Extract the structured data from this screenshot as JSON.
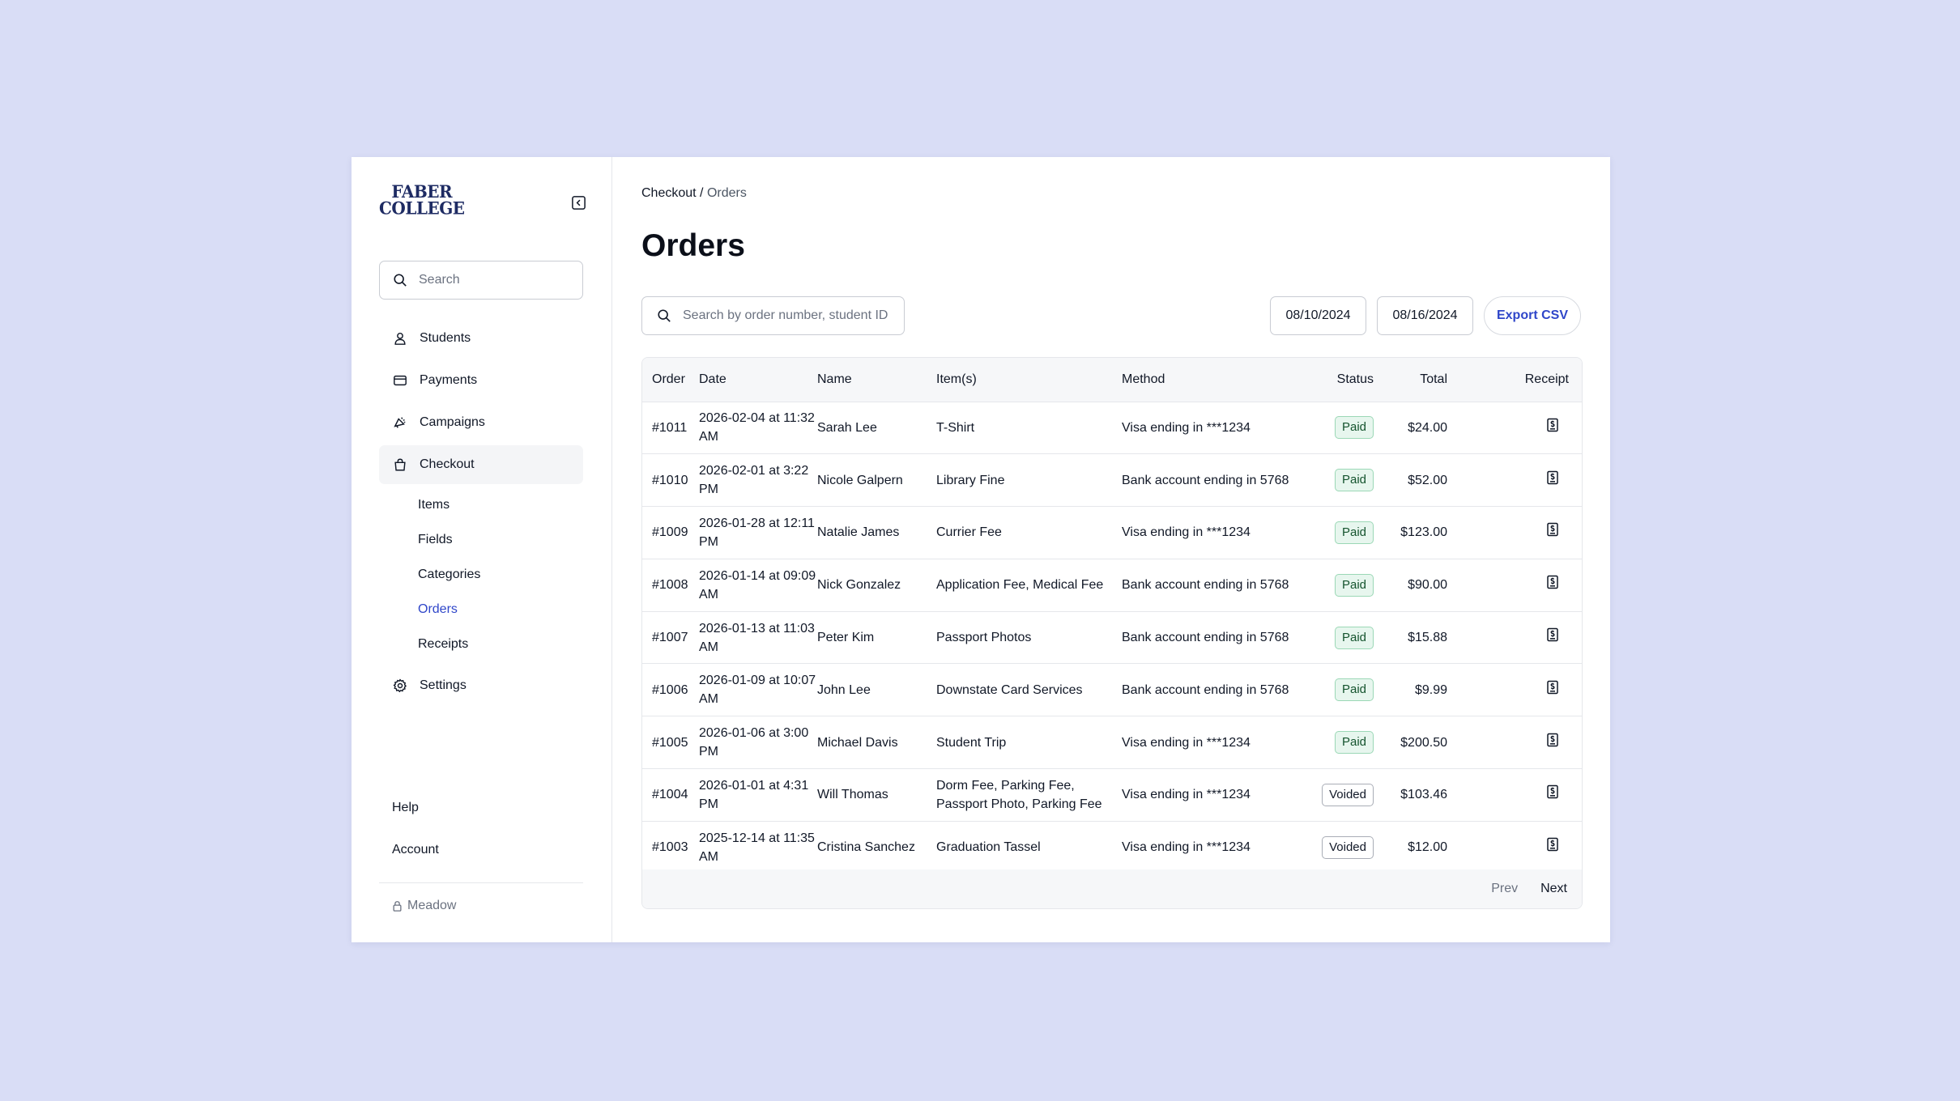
{
  "brand": {
    "logo_line1": "FABER",
    "logo_line2": "COLLEGE",
    "color": "#1e2b63"
  },
  "colors": {
    "accent": "#2f46c9",
    "background": "#d9ddf6",
    "paid_bg": "#e7f6ee",
    "paid_border": "#9bd8b6"
  },
  "sidebar": {
    "search_placeholder": "Search",
    "nav": [
      {
        "label": "Students",
        "icon": "user-icon"
      },
      {
        "label": "Payments",
        "icon": "credit-card-icon"
      },
      {
        "label": "Campaigns",
        "icon": "megaphone-icon"
      },
      {
        "label": "Checkout",
        "icon": "shopping-bag-icon"
      }
    ],
    "checkout_sub": [
      "Items",
      "Fields",
      "Categories",
      "Orders",
      "Receipts"
    ],
    "settings": {
      "label": "Settings",
      "icon": "gear-icon"
    },
    "help": "Help",
    "account": "Account",
    "workspace": "Meadow"
  },
  "breadcrumb": {
    "parent": "Checkout",
    "separator": " / ",
    "current": "Orders"
  },
  "page_title": "Orders",
  "toolbar": {
    "search_placeholder": "Search by order number, student ID",
    "date_from": "08/10/2024",
    "date_to": "08/16/2024",
    "export_label": "Export CSV"
  },
  "table": {
    "headers": {
      "order": "Order",
      "date": "Date",
      "name": "Name",
      "items": "Item(s)",
      "method": "Method",
      "status": "Status",
      "total": "Total",
      "receipt": "Receipt"
    },
    "rows": [
      {
        "order": "#1011",
        "date": "2026-02-04 at 11:32 AM",
        "name": "Sarah Lee",
        "items": "T-Shirt",
        "method": "Visa ending in ***1234",
        "status": "Paid",
        "total": "$24.00"
      },
      {
        "order": "#1010",
        "date": "2026-02-01 at 3:22 PM",
        "name": "Nicole Galpern",
        "items": "Library Fine",
        "method": "Bank account ending in 5768",
        "status": "Paid",
        "total": "$52.00"
      },
      {
        "order": "#1009",
        "date": "2026-01-28 at 12:11 PM",
        "name": "Natalie James",
        "items": "Currier Fee",
        "method": "Visa ending in ***1234",
        "status": "Paid",
        "total": "$123.00"
      },
      {
        "order": "#1008",
        "date": "2026-01-14 at 09:09 AM",
        "name": "Nick Gonzalez",
        "items": "Application Fee, Medical Fee",
        "method": "Bank account ending in 5768",
        "status": "Paid",
        "total": "$90.00"
      },
      {
        "order": "#1007",
        "date": "2026-01-13 at 11:03 AM",
        "name": "Peter Kim",
        "items": "Passport Photos",
        "method": "Bank account ending in 5768",
        "status": "Paid",
        "total": "$15.88"
      },
      {
        "order": "#1006",
        "date": "2026-01-09 at 10:07 AM",
        "name": "John Lee",
        "items": "Downstate Card Services",
        "method": "Bank account ending in 5768",
        "status": "Paid",
        "total": "$9.99"
      },
      {
        "order": "#1005",
        "date": "2026-01-06 at 3:00 PM",
        "name": "Michael Davis",
        "items": "Student Trip",
        "method": "Visa ending in ***1234",
        "status": "Paid",
        "total": "$200.50"
      },
      {
        "order": "#1004",
        "date": "2026-01-01 at 4:31 PM",
        "name": "Will Thomas",
        "items": "Dorm Fee, Parking Fee, Passport Photo, Parking Fee",
        "method": "Visa ending in ***1234",
        "status": "Voided",
        "total": "$103.46"
      },
      {
        "order": "#1003",
        "date": "2025-12-14 at 11:35 AM",
        "name": "Cristina Sanchez",
        "items": "Graduation Tassel",
        "method": "Visa ending in ***1234",
        "status": "Voided",
        "total": "$12.00"
      }
    ]
  },
  "pagination": {
    "prev": "Prev",
    "next": "Next"
  }
}
